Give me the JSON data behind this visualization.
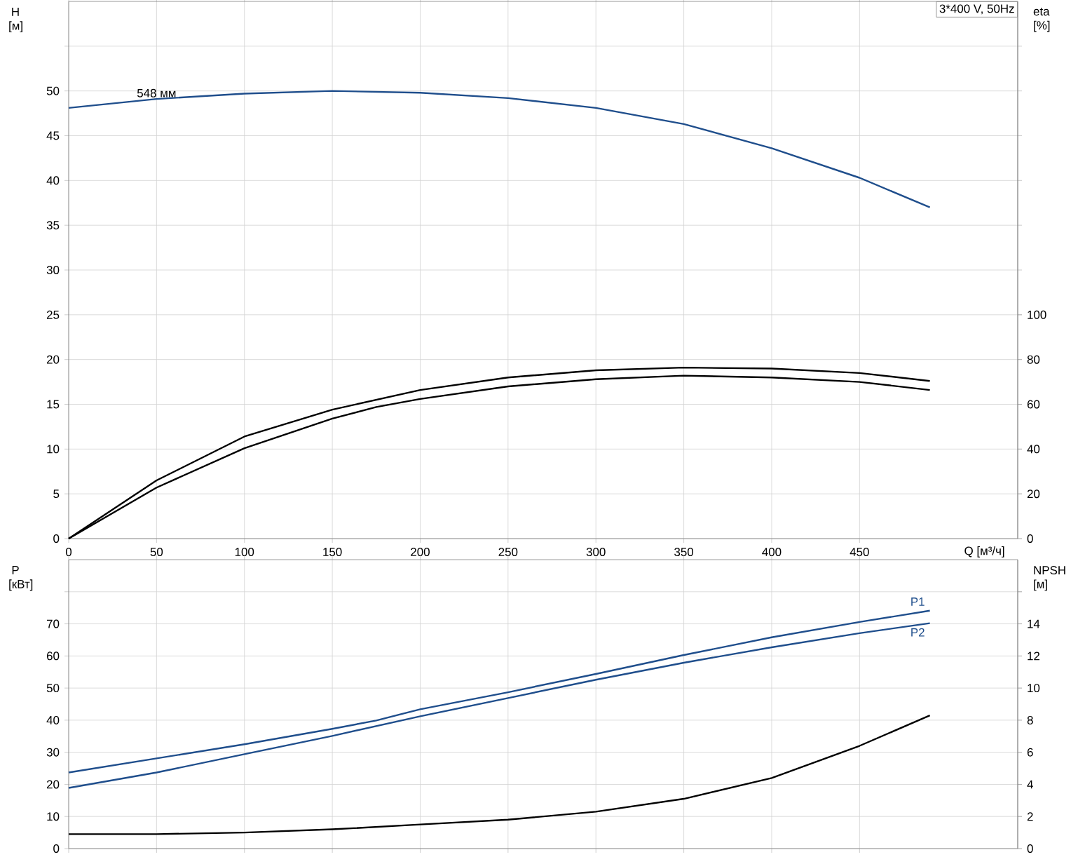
{
  "chart_data": [
    {
      "type": "line",
      "annotations": [
        "3*400 V, 50Hz",
        {
          "text": "548 мм",
          "x": 50,
          "y": 49.1
        }
      ],
      "xlabel": "Q [м³/ч]",
      "ylabel": "H [м]",
      "y2label": "eta [%]",
      "xlim": [
        0,
        540
      ],
      "xticks": [
        0,
        50,
        100,
        150,
        200,
        250,
        300,
        350,
        400,
        450
      ],
      "ylim": [
        0,
        60
      ],
      "yticks": [
        0,
        5,
        10,
        15,
        20,
        25,
        30,
        35,
        40,
        45,
        50,
        {
          "value": 55,
          "label": null
        }
      ],
      "y2lim": [
        0,
        240
      ],
      "y2ticks": [
        0,
        20,
        40,
        60,
        80,
        100
      ],
      "grid": true,
      "marker": "none",
      "series": [
        {
          "color": "#1f4e8c",
          "x": [
            0,
            50,
            100,
            150,
            200,
            250,
            300,
            350,
            400,
            450,
            490
          ],
          "values": [
            48.1,
            49.1,
            49.7,
            50,
            49.8,
            49.2,
            48.1,
            46.3,
            43.6,
            40.3,
            37.0
          ]
        },
        {
          "color": "#000000",
          "axis": "y2",
          "x": [
            0,
            50,
            100,
            150,
            200,
            250,
            300,
            350,
            400,
            450,
            490
          ],
          "values": [
            0,
            26,
            45.6,
            57.6,
            66.4,
            72,
            75.2,
            76.4,
            76,
            74,
            70.4
          ]
        },
        {
          "color": "#000000",
          "axis": "y2",
          "x": [
            0,
            50,
            100,
            150,
            175,
            200,
            250,
            300,
            350,
            400,
            450,
            490
          ],
          "values": [
            0,
            22.8,
            40.4,
            53.6,
            58.8,
            62.4,
            68,
            71.2,
            72.8,
            72,
            70,
            66.4
          ]
        }
      ]
    },
    {
      "type": "line",
      "ylabel": "P [кВт]",
      "y2label": "NPSH [м]",
      "xlim": [
        0,
        540
      ],
      "xticks": [
        0,
        50,
        100,
        150,
        200,
        250,
        300,
        350,
        400,
        450
      ],
      "ylim": [
        0,
        90
      ],
      "yticks": [
        0,
        10,
        20,
        30,
        40,
        50,
        60,
        70,
        {
          "value": 80,
          "label": null
        }
      ],
      "y2lim": [
        0,
        18
      ],
      "y2ticks": [
        0,
        2,
        4,
        6,
        8,
        10,
        12,
        14,
        {
          "value": 16,
          "label": null
        }
      ],
      "tick_labels": "y",
      "grid": true,
      "marker": "none",
      "series": [
        {
          "name": "P1",
          "color": "#1f4e8c",
          "x": [
            0,
            50,
            100,
            150,
            175,
            200,
            250,
            300,
            350,
            400,
            450,
            490
          ],
          "values": [
            23.7,
            28.1,
            32.5,
            37.3,
            39.9,
            43.4,
            48.7,
            54.4,
            60.3,
            65.8,
            70.6,
            74.1
          ]
        },
        {
          "name": "P2",
          "color": "#1f4e8c",
          "x": [
            0,
            50,
            100,
            150,
            200,
            250,
            300,
            350,
            400,
            450,
            490
          ],
          "values": [
            18.9,
            23.7,
            29.4,
            35.1,
            41.2,
            46.9,
            52.6,
            57.9,
            62.7,
            67.1,
            70.2
          ]
        },
        {
          "color": "#000000",
          "axis": "y2",
          "x": [
            0,
            50,
            100,
            150,
            200,
            250,
            300,
            350,
            400,
            450,
            490
          ],
          "values": [
            0.9,
            0.9,
            1.0,
            1.2,
            1.5,
            1.8,
            2.3,
            3.1,
            4.4,
            6.4,
            8.3
          ]
        }
      ]
    }
  ]
}
